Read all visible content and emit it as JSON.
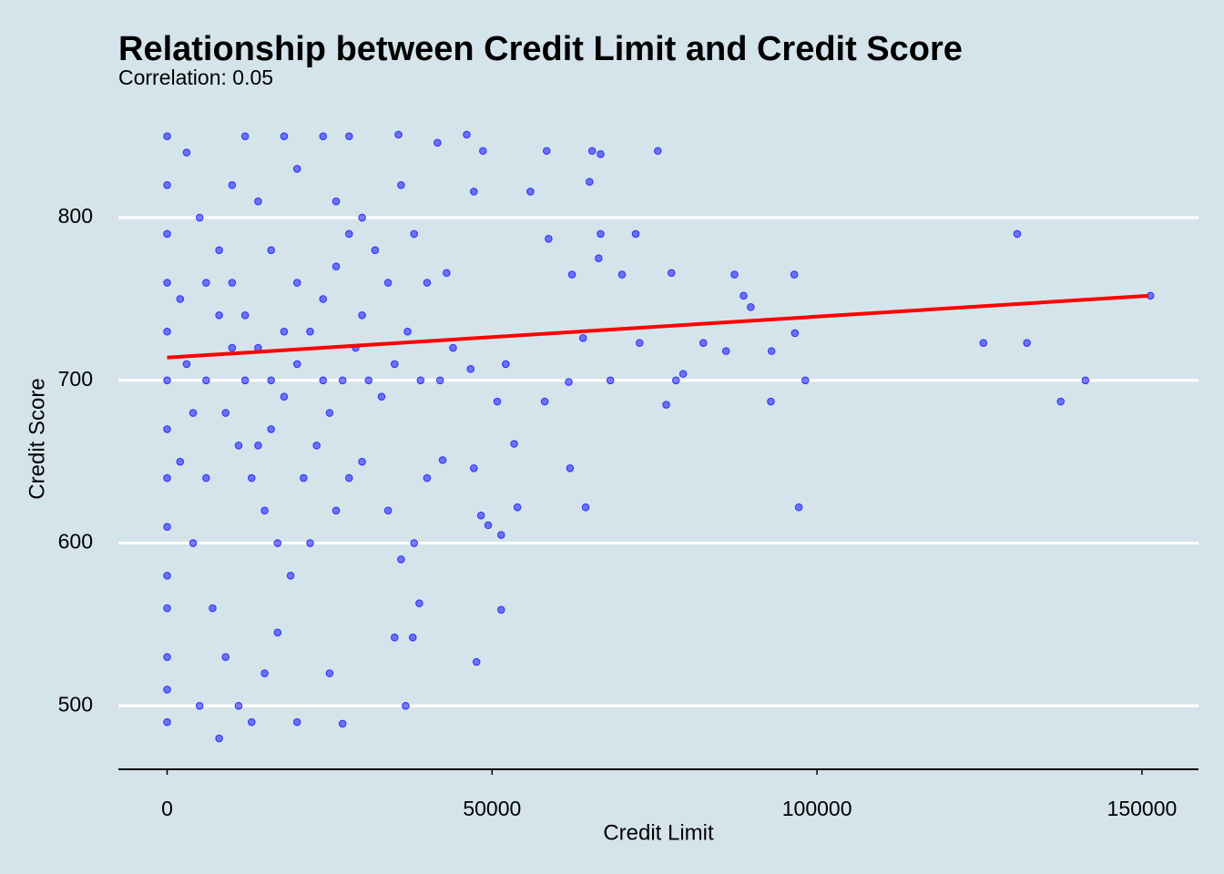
{
  "chart_data": {
    "type": "scatter",
    "title": "Relationship between Credit Limit and Credit Score",
    "subtitle": "Correlation:  0.05",
    "x_label": "Credit Limit",
    "y_label": "Credit Score",
    "color": "#0000ff",
    "grid": true,
    "xlim": [
      -7500,
      158700
    ],
    "ylim": [
      461,
      861
    ],
    "xticks": [
      0,
      50000,
      100000,
      150000
    ],
    "yticks": [
      500,
      600,
      700,
      800
    ],
    "x": [
      151300,
      130800,
      125600,
      132300,
      137500,
      141300,
      97200,
      98200,
      96600,
      96500,
      92900,
      93000,
      87300,
      88700,
      89800,
      86000,
      82500,
      79400,
      78300,
      76800,
      77600,
      75500,
      72700,
      72100,
      70000,
      68200,
      66700,
      66400,
      66700,
      65400,
      65000,
      64400,
      64000,
      62300,
      62000,
      61800,
      58400,
      58700,
      58100,
      55900,
      53900,
      53400,
      51400,
      51400,
      48600,
      47200,
      47600,
      47200,
      46100,
      42400,
      38800,
      36700,
      35000,
      37800,
      41600,
      35600,
      48300,
      49400,
      50800,
      52100,
      46700,
      43000,
      0,
      0,
      0,
      0,
      0,
      0,
      0,
      0,
      0,
      0,
      0,
      0,
      0,
      0,
      3000,
      5000,
      8000,
      10000,
      12000,
      14000,
      16000,
      18000,
      20000,
      22000,
      24000,
      26000,
      28000,
      30000,
      32000,
      34000,
      6000,
      9000,
      11000,
      13000,
      15000,
      17000,
      19000,
      21000,
      23000,
      25000,
      27000,
      29000,
      31000,
      33000,
      35000,
      37000,
      39000,
      4000,
      7000,
      9000,
      11000,
      13000,
      15000,
      17000,
      5000,
      8000,
      20000,
      27000,
      25000,
      18000,
      12000,
      24000,
      28000,
      10000,
      20000,
      14000,
      26000,
      2000,
      3000,
      2000,
      6000,
      22000,
      28000,
      30000,
      34000,
      36000,
      38000,
      40000,
      42000,
      44000,
      40000,
      38000,
      36000,
      16000,
      8000,
      12000,
      18000,
      14000,
      24000,
      30000,
      20000,
      10000,
      6000,
      4000,
      16000,
      26000
    ],
    "values": [
      752,
      790,
      723,
      723,
      687,
      700,
      622,
      700,
      729,
      765,
      687,
      718,
      765,
      752,
      745,
      718,
      723,
      704,
      700,
      685,
      766,
      841,
      723,
      790,
      765,
      700,
      790,
      775,
      839,
      841,
      822,
      622,
      726,
      765,
      646,
      699,
      841,
      787,
      687,
      816,
      622,
      661,
      605,
      559,
      841,
      816,
      527,
      646,
      851,
      651,
      563,
      500,
      542,
      542,
      846,
      851,
      617,
      611,
      687,
      710,
      707,
      766,
      850,
      820,
      790,
      760,
      730,
      700,
      670,
      640,
      610,
      580,
      560,
      530,
      510,
      490,
      840,
      800,
      780,
      760,
      740,
      720,
      700,
      690,
      710,
      730,
      750,
      770,
      790,
      800,
      780,
      760,
      700,
      680,
      660,
      640,
      620,
      600,
      580,
      640,
      660,
      680,
      700,
      720,
      700,
      690,
      710,
      730,
      700,
      600,
      560,
      530,
      500,
      490,
      520,
      545,
      500,
      480,
      490,
      489,
      520,
      850,
      850,
      850,
      850,
      820,
      830,
      810,
      810,
      750,
      710,
      650,
      640,
      600,
      640,
      650,
      620,
      590,
      600,
      640,
      700,
      720,
      760,
      790,
      820,
      780,
      740,
      700,
      730,
      660,
      700,
      740,
      760,
      720,
      760,
      680,
      670,
      620
    ],
    "trend": {
      "color": "#ff0000",
      "x": [
        0,
        151000
      ],
      "values": [
        714,
        752
      ]
    }
  }
}
